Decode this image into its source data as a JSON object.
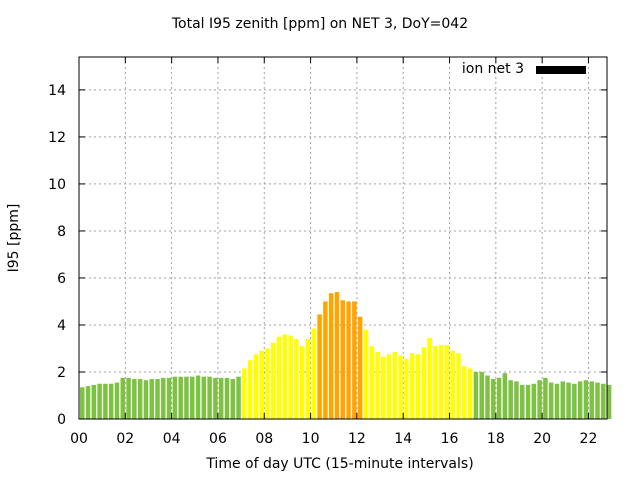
{
  "chart_data": {
    "type": "bar",
    "title": "Total I95 zenith [ppm] on NET 3, DoY=042",
    "xlabel": "Time of day UTC (15-minute intervals)",
    "ylabel": "I95 [ppm]",
    "legend": {
      "label": "ion net 3",
      "color": "#000000",
      "placement": "top-right"
    },
    "grid": true,
    "xlim": [
      0,
      22.8
    ],
    "ylim": [
      0,
      15.4
    ],
    "xticks": [
      "00",
      "02",
      "04",
      "06",
      "08",
      "10",
      "12",
      "14",
      "16",
      "18",
      "20",
      "22"
    ],
    "yticks": [
      "0",
      "2",
      "4",
      "6",
      "8",
      "10",
      "12",
      "14"
    ],
    "color_scale": {
      "low": "#7dc242",
      "mid": "#ffff00",
      "high": "#ffa500"
    },
    "x": [
      0,
      0.25,
      0.5,
      0.75,
      1,
      1.25,
      1.5,
      1.75,
      2,
      2.25,
      2.5,
      2.75,
      3,
      3.25,
      3.5,
      3.75,
      4,
      4.25,
      4.5,
      4.75,
      5,
      5.25,
      5.5,
      5.75,
      6,
      6.25,
      6.5,
      6.75,
      7,
      7.25,
      7.5,
      7.75,
      8,
      8.25,
      8.5,
      8.75,
      9,
      9.25,
      9.5,
      9.75,
      10,
      10.25,
      10.5,
      10.75,
      11,
      11.25,
      11.5,
      11.75,
      12,
      12.25,
      12.5,
      12.75,
      13,
      13.25,
      13.5,
      13.75,
      14,
      14.25,
      14.5,
      14.75,
      15,
      15.25,
      15.5,
      15.75,
      16,
      16.25,
      16.5,
      16.75,
      17,
      17.25,
      17.5,
      17.75,
      18,
      18.25,
      18.5,
      18.75,
      19,
      19.25,
      19.5,
      19.75,
      20,
      20.25,
      20.5,
      20.75,
      21,
      21.25,
      21.5,
      21.75,
      22,
      22.25,
      22.5,
      22.75
    ],
    "values": [
      1.35,
      1.4,
      1.45,
      1.5,
      1.5,
      1.5,
      1.55,
      1.75,
      1.75,
      1.7,
      1.7,
      1.65,
      1.7,
      1.7,
      1.75,
      1.75,
      1.8,
      1.8,
      1.8,
      1.8,
      1.85,
      1.8,
      1.8,
      1.75,
      1.75,
      1.75,
      1.7,
      1.8,
      2.15,
      2.5,
      2.75,
      2.9,
      3.0,
      3.25,
      3.5,
      3.6,
      3.55,
      3.4,
      3.1,
      3.4,
      3.85,
      4.45,
      5.0,
      5.35,
      5.4,
      5.05,
      5.0,
      5.0,
      4.35,
      3.8,
      3.1,
      2.85,
      2.65,
      2.75,
      2.85,
      2.7,
      2.55,
      2.8,
      2.75,
      3.05,
      3.45,
      3.1,
      3.15,
      3.15,
      2.9,
      2.8,
      2.25,
      2.15,
      2.0,
      2.0,
      1.85,
      1.7,
      1.75,
      1.95,
      1.65,
      1.6,
      1.45,
      1.45,
      1.5,
      1.65,
      1.75,
      1.55,
      1.5,
      1.6,
      1.55,
      1.5,
      1.6,
      1.65,
      1.6,
      1.55,
      1.5,
      1.45
    ],
    "categories": [
      "low",
      "low",
      "low",
      "low",
      "low",
      "low",
      "low",
      "low",
      "low",
      "low",
      "low",
      "low",
      "low",
      "low",
      "low",
      "low",
      "low",
      "low",
      "low",
      "low",
      "low",
      "low",
      "low",
      "low",
      "low",
      "low",
      "low",
      "low",
      "mid",
      "mid",
      "mid",
      "mid",
      "mid",
      "mid",
      "mid",
      "mid",
      "mid",
      "mid",
      "mid",
      "mid",
      "mid",
      "high",
      "high",
      "high",
      "high",
      "high",
      "high",
      "high",
      "high",
      "mid",
      "mid",
      "mid",
      "mid",
      "mid",
      "mid",
      "mid",
      "mid",
      "mid",
      "mid",
      "mid",
      "mid",
      "mid",
      "mid",
      "mid",
      "mid",
      "mid",
      "mid",
      "mid",
      "low",
      "low",
      "low",
      "low",
      "low",
      "low",
      "low",
      "low",
      "low",
      "low",
      "low",
      "low",
      "low",
      "low",
      "low",
      "low",
      "low",
      "low",
      "low",
      "low",
      "low",
      "low",
      "low",
      "low"
    ]
  }
}
